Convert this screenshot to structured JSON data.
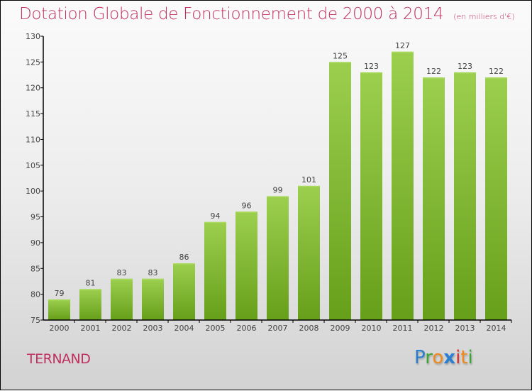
{
  "chart_data": {
    "type": "bar",
    "title": "Dotation Globale de Fonctionnement de 2000 à 2014",
    "subtitle": "(en milliers d'€)",
    "xlabel": "",
    "ylabel": "",
    "categories": [
      "2000",
      "2001",
      "2002",
      "2003",
      "2004",
      "2005",
      "2006",
      "2007",
      "2008",
      "2009",
      "2010",
      "2011",
      "2012",
      "2013",
      "2014"
    ],
    "values": [
      79,
      81,
      83,
      83,
      86,
      94,
      96,
      99,
      101,
      125,
      123,
      127,
      122,
      123,
      122
    ],
    "ylim": [
      75,
      130
    ],
    "yticks": [
      75,
      80,
      85,
      90,
      95,
      100,
      105,
      110,
      115,
      120,
      125,
      130
    ],
    "grid": false,
    "legend": "none",
    "bar_color_top": "#9ccf4e",
    "bar_color_bottom": "#669f1a"
  },
  "footer": {
    "commune": "TERNAND",
    "brand_letters": [
      {
        "ch": "P",
        "color": "#2a7fd0"
      },
      {
        "ch": "r",
        "color": "#3aa435"
      },
      {
        "ch": "o",
        "color": "#f08a1c"
      },
      {
        "ch": "x",
        "color": "#2a7fd0"
      },
      {
        "ch": "i",
        "color": "#e0302a"
      },
      {
        "ch": "t",
        "color": "#f08a1c"
      },
      {
        "ch": "i",
        "color": "#3aa435"
      }
    ]
  }
}
